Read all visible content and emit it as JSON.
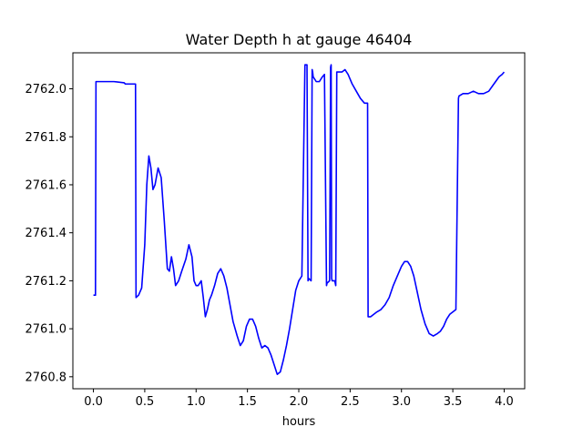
{
  "chart_data": {
    "type": "line",
    "title": "Water Depth h at gauge 46404",
    "xlabel": "hours",
    "ylabel": "",
    "xlim": [
      -0.2,
      4.2
    ],
    "ylim": [
      2760.75,
      2762.15
    ],
    "xticks": [
      0.0,
      0.5,
      1.0,
      1.5,
      2.0,
      2.5,
      3.0,
      3.5,
      4.0
    ],
    "xtick_labels": [
      "0.0",
      "0.5",
      "1.0",
      "1.5",
      "2.0",
      "2.5",
      "3.0",
      "3.5",
      "4.0"
    ],
    "yticks": [
      2760.8,
      2761.0,
      2761.2,
      2761.4,
      2761.6,
      2761.8,
      2762.0
    ],
    "ytick_labels": [
      "2760.8",
      "2761.0",
      "2761.2",
      "2761.4",
      "2761.6",
      "2761.8",
      "2762.0"
    ],
    "grid": false,
    "line_color": "#0000ff",
    "series": [
      {
        "x": [
          0.0,
          0.02,
          0.025,
          0.2,
          0.3,
          0.31,
          0.41,
          0.415,
          0.44,
          0.47,
          0.5,
          0.52,
          0.54,
          0.56,
          0.58,
          0.6,
          0.63,
          0.66,
          0.69,
          0.72,
          0.74,
          0.76,
          0.78,
          0.8,
          0.83,
          0.86,
          0.9,
          0.93,
          0.96,
          0.98,
          1.0,
          1.02,
          1.05,
          1.07,
          1.09,
          1.11,
          1.13,
          1.15,
          1.18,
          1.21,
          1.24,
          1.27,
          1.3,
          1.33,
          1.36,
          1.4,
          1.43,
          1.46,
          1.49,
          1.52,
          1.55,
          1.58,
          1.61,
          1.64,
          1.67,
          1.7,
          1.73,
          1.76,
          1.79,
          1.82,
          1.85,
          1.88,
          1.91,
          1.94,
          1.97,
          2.0,
          2.03,
          2.06,
          2.08,
          2.09,
          2.095,
          2.12,
          2.13,
          2.135,
          2.14,
          2.17,
          2.2,
          2.23,
          2.25,
          2.27,
          2.275,
          2.3,
          2.31,
          2.315,
          2.32,
          2.325,
          2.35,
          2.36,
          2.37,
          2.39,
          2.42,
          2.45,
          2.48,
          2.52,
          2.56,
          2.6,
          2.64,
          2.67,
          2.675,
          2.7,
          2.73,
          2.76,
          2.8,
          2.84,
          2.88,
          2.92,
          2.96,
          3.0,
          3.03,
          3.06,
          3.09,
          3.12,
          3.15,
          3.19,
          3.23,
          3.27,
          3.31,
          3.35,
          3.38,
          3.41,
          3.44,
          3.47,
          3.5,
          3.53,
          3.555,
          3.56,
          3.6,
          3.65,
          3.7,
          3.75,
          3.8,
          3.85,
          3.9,
          3.95,
          3.98,
          4.0
        ],
        "values": [
          2761.14,
          2761.14,
          2762.03,
          2762.03,
          2762.025,
          2762.02,
          2762.02,
          2761.13,
          2761.14,
          2761.17,
          2761.35,
          2761.6,
          2761.72,
          2761.67,
          2761.58,
          2761.6,
          2761.67,
          2761.63,
          2761.45,
          2761.25,
          2761.24,
          2761.3,
          2761.25,
          2761.18,
          2761.2,
          2761.24,
          2761.29,
          2761.35,
          2761.3,
          2761.2,
          2761.18,
          2761.18,
          2761.2,
          2761.13,
          2761.05,
          2761.08,
          2761.12,
          2761.14,
          2761.18,
          2761.23,
          2761.25,
          2761.22,
          2761.17,
          2761.1,
          2761.03,
          2760.97,
          2760.93,
          2760.95,
          2761.01,
          2761.04,
          2761.04,
          2761.01,
          2760.96,
          2760.92,
          2760.93,
          2760.92,
          2760.89,
          2760.85,
          2760.81,
          2760.82,
          2760.87,
          2760.93,
          2761.0,
          2761.08,
          2761.16,
          2761.2,
          2761.22,
          2762.1,
          2762.1,
          2761.2,
          2761.21,
          2761.2,
          2762.08,
          2762.07,
          2762.05,
          2762.03,
          2762.03,
          2762.05,
          2762.06,
          2761.18,
          2761.19,
          2761.2,
          2762.09,
          2762.1,
          2761.21,
          2761.2,
          2761.2,
          2761.18,
          2762.07,
          2762.07,
          2762.07,
          2762.08,
          2762.06,
          2762.02,
          2761.99,
          2761.96,
          2761.94,
          2761.94,
          2761.05,
          2761.05,
          2761.06,
          2761.07,
          2761.08,
          2761.1,
          2761.13,
          2761.18,
          2761.22,
          2761.26,
          2761.28,
          2761.28,
          2761.26,
          2761.22,
          2761.16,
          2761.08,
          2761.02,
          2760.98,
          2760.97,
          2760.98,
          2760.99,
          2761.01,
          2761.04,
          2761.06,
          2761.07,
          2761.08,
          2761.96,
          2761.97,
          2761.98,
          2761.98,
          2761.99,
          2761.98,
          2761.98,
          2761.99,
          2762.02,
          2762.05,
          2762.06,
          2762.07
        ]
      }
    ]
  }
}
